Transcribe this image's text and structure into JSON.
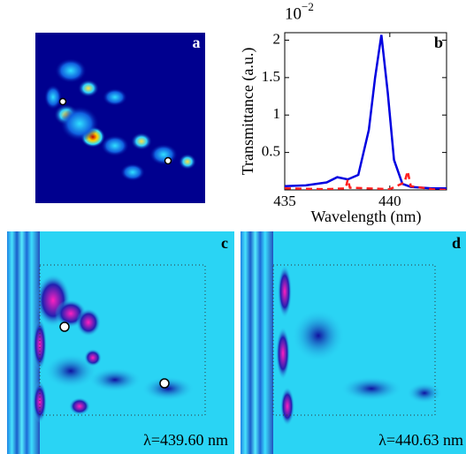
{
  "panel_labels": [
    "a",
    "b",
    "c",
    "d"
  ],
  "captions": {
    "c": "λ=439.60 nm",
    "d": "λ=440.63 nm"
  },
  "chart_data": {
    "type": "line",
    "ylabel": "Transmittance (a.u.)",
    "xlabel": "Wavelength (nm)",
    "multiplier": {
      "base": "10",
      "exponent": "−2"
    },
    "xlim": [
      435,
      442.7
    ],
    "xticks": [
      435,
      440
    ],
    "ylim": [
      0,
      2.1
    ],
    "yticks": [
      0.5,
      1,
      1.5,
      2
    ],
    "series": [
      {
        "color": "#0000e0",
        "dashed": false,
        "x": [
          435,
          436,
          437,
          437.5,
          438,
          438.5,
          439,
          439.3,
          439.6,
          439.9,
          440.2,
          440.6,
          441,
          442,
          442.7
        ],
        "values": [
          0.05,
          0.06,
          0.1,
          0.17,
          0.14,
          0.2,
          0.8,
          1.5,
          2.07,
          1.3,
          0.4,
          0.08,
          0.04,
          0.02,
          0.02
        ]
      },
      {
        "color": "#ff2020",
        "dashed": true,
        "x": [
          435,
          437,
          437.9,
          438,
          438.1,
          440,
          440.7,
          440.85,
          441,
          442,
          442.7
        ],
        "values": [
          0.02,
          0.01,
          0.02,
          0.14,
          0.03,
          0.01,
          0.1,
          0.25,
          0.05,
          0.01,
          0
        ]
      }
    ]
  }
}
